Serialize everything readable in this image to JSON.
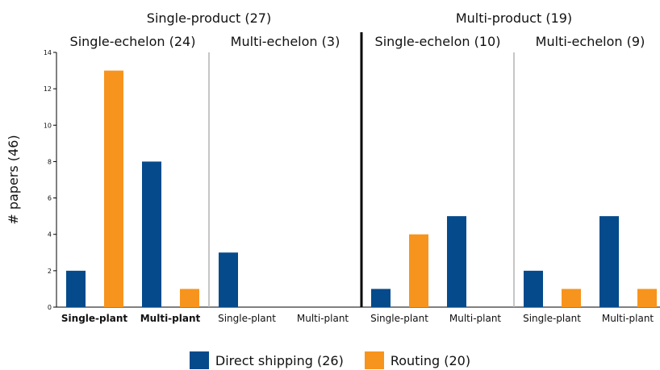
{
  "chart_data": {
    "type": "bar",
    "ylabel": "# papers (46)",
    "ylim": [
      0,
      14
    ],
    "yticks": [
      0,
      2,
      4,
      6,
      8,
      10,
      12,
      14
    ],
    "top_groups": [
      {
        "label": "Single-product (27)",
        "sub_groups": [
          {
            "label": "Single-echelon (24)",
            "categories": [
              "Single-plant",
              "Multi-plant"
            ],
            "bold": true
          },
          {
            "label": "Multi-echelon (3)",
            "categories": [
              "Single-plant",
              "Multi-plant"
            ],
            "bold": false
          }
        ]
      },
      {
        "label": "Multi-product (19)",
        "sub_groups": [
          {
            "label": "Single-echelon (10)",
            "categories": [
              "Single-plant",
              "Multi-plant"
            ],
            "bold": false
          },
          {
            "label": "Multi-echelon (9)",
            "categories": [
              "Single-plant",
              "Multi-plant"
            ],
            "bold": false
          }
        ]
      }
    ],
    "categories": [
      "Single-product / Single-echelon / Single-plant",
      "Single-product / Single-echelon / Multi-plant",
      "Single-product / Multi-echelon / Single-plant",
      "Single-product / Multi-echelon / Multi-plant",
      "Multi-product / Single-echelon / Single-plant",
      "Multi-product / Single-echelon / Multi-plant",
      "Multi-product / Multi-echelon / Single-plant",
      "Multi-product / Multi-echelon / Multi-plant"
    ],
    "series": [
      {
        "name": "Direct shipping (26)",
        "color": "#054a8b",
        "values": [
          2,
          8,
          3,
          0,
          1,
          5,
          2,
          5
        ]
      },
      {
        "name": "Routing (20)",
        "color": "#f7941d",
        "values": [
          13,
          1,
          0,
          0,
          4,
          0,
          1,
          1
        ]
      }
    ],
    "grid": false,
    "legend_position": "bottom-center"
  }
}
